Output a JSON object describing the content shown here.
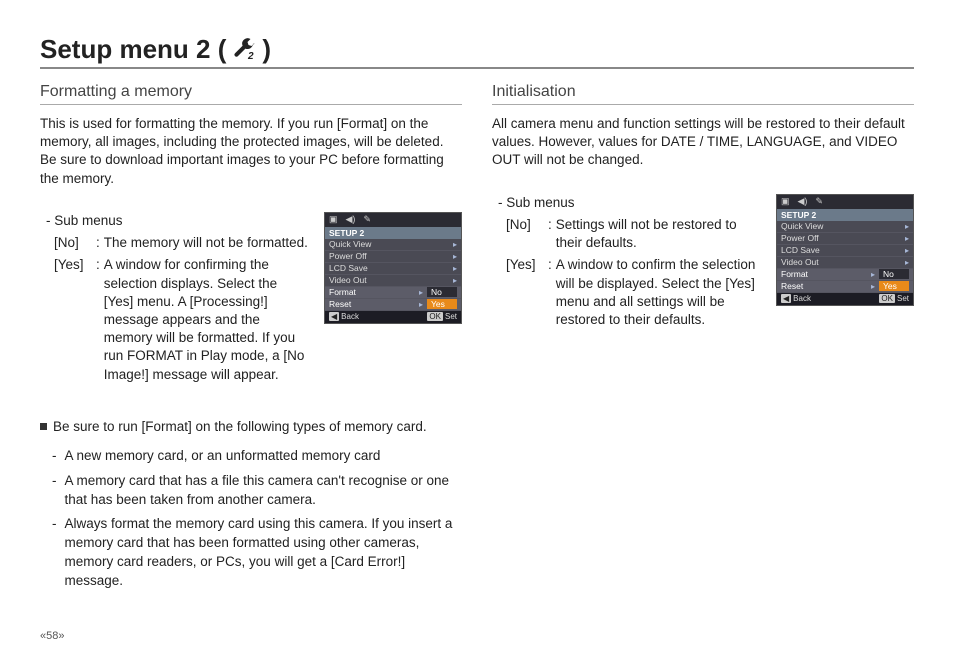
{
  "page": {
    "title_prefix": "Setup menu 2 (",
    "title_suffix": ")",
    "page_number": "58"
  },
  "left": {
    "heading": "Formatting a memory",
    "intro": "This is used for formatting the memory. If you run [Format] on the memory, all images, including the protected images, will be deleted. Be sure to download important images to your PC before formatting the memory.",
    "sub_label": "- Sub menus",
    "options": [
      {
        "key": "[No]",
        "colon": ":",
        "val": "The memory will not be formatted."
      },
      {
        "key": "[Yes]",
        "colon": ":",
        "val": "A window for confirming the selection displays. Select the [Yes] menu. A [Processing!] message appears and the memory will be formatted. If you run FORMAT in Play mode, a [No Image!] message will appear."
      }
    ],
    "note_lead": "Be sure to run [Format] on the following types of memory card.",
    "bullets": [
      "A new memory card, or an unformatted memory card",
      "A memory card that has a file this camera can't recognise or one that has been taken from another camera.",
      "Always format the memory card using this camera. If you insert a memory card that has been formatted using other cameras, memory card readers, or PCs, you will get a [Card Error!] message."
    ],
    "menu": {
      "title": "SETUP 2",
      "rows": [
        {
          "label": "Quick View",
          "value": null,
          "hi": false
        },
        {
          "label": "Power Off",
          "value": null,
          "hi": false
        },
        {
          "label": "LCD Save",
          "value": null,
          "hi": false
        },
        {
          "label": "Video Out",
          "value": null,
          "hi": false
        },
        {
          "label": "Format",
          "value": "No",
          "hi": false
        },
        {
          "label": "Reset",
          "value": "Yes",
          "hi": true
        }
      ],
      "footer_back": "Back",
      "footer_set": "Set"
    }
  },
  "right": {
    "heading": "Initialisation",
    "intro": "All camera menu and function settings will be restored to their default values. However, values for DATE / TIME, LANGUAGE, and VIDEO OUT will not be changed.",
    "sub_label": "- Sub menus",
    "options": [
      {
        "key": "[No]",
        "colon": ":",
        "val": "Settings will not be restored to their defaults."
      },
      {
        "key": "[Yes]",
        "colon": ":",
        "val": "A window to confirm the selection will be displayed. Select the [Yes] menu and all settings will be restored to their defaults."
      }
    ],
    "menu": {
      "title": "SETUP 2",
      "rows": [
        {
          "label": "Quick View",
          "value": null,
          "hi": false
        },
        {
          "label": "Power Off",
          "value": null,
          "hi": false
        },
        {
          "label": "LCD Save",
          "value": null,
          "hi": false
        },
        {
          "label": "Video Out",
          "value": null,
          "hi": false
        },
        {
          "label": "Format",
          "value": "No",
          "hi": false
        },
        {
          "label": "Reset",
          "value": "Yes",
          "hi": true
        }
      ],
      "footer_back": "Back",
      "footer_set": "Set"
    }
  }
}
